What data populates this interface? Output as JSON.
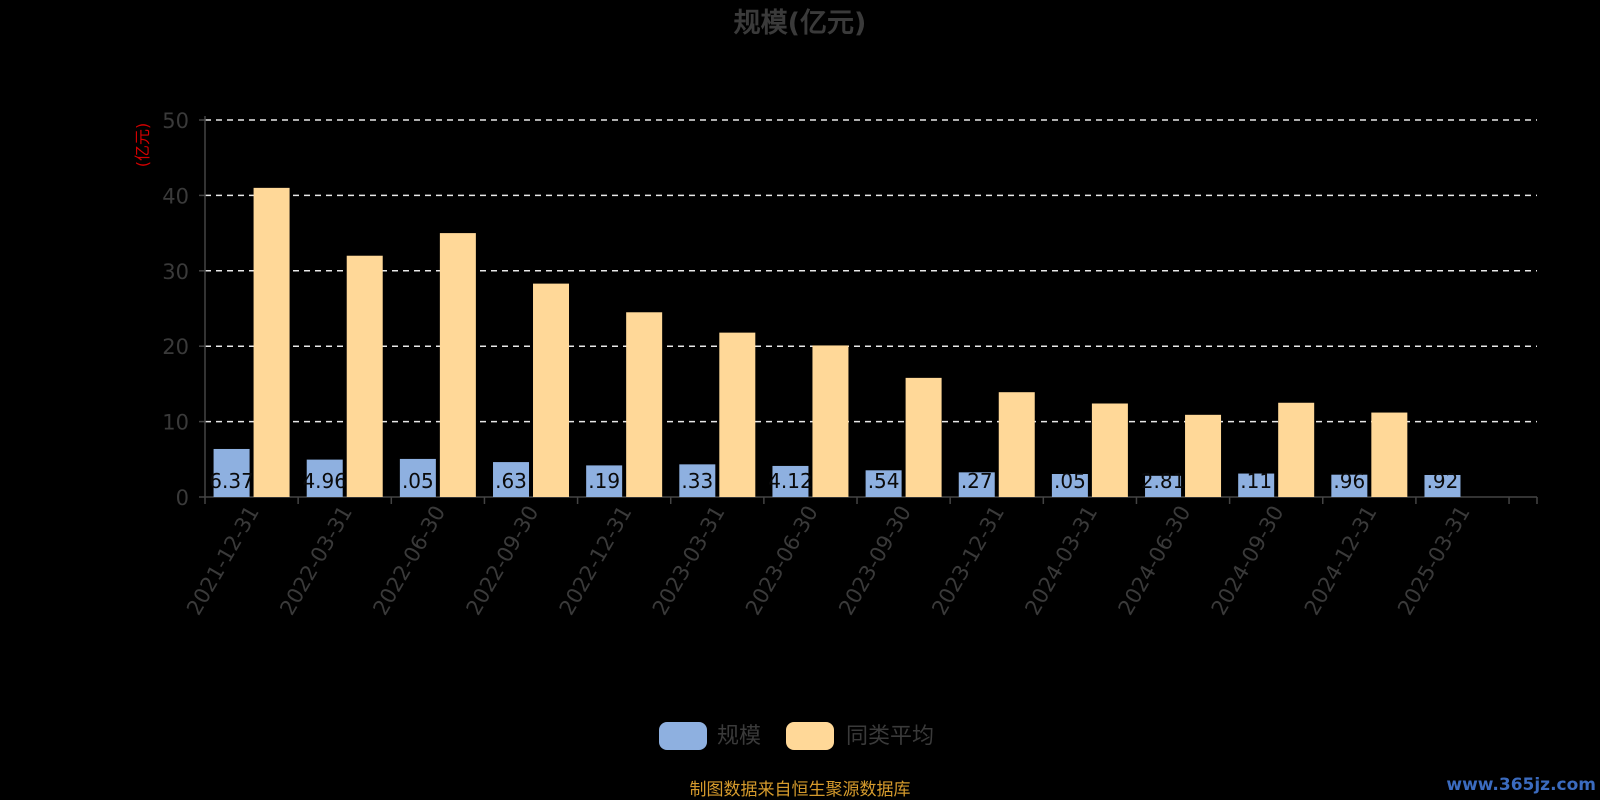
{
  "chart_data": {
    "type": "bar",
    "title": "规模(亿元)",
    "ylabel": "(亿元)",
    "ylim": [
      0,
      50
    ],
    "yticks": [
      0,
      10,
      20,
      30,
      40,
      50
    ],
    "grid": true,
    "legend_position": "bottom",
    "categories": [
      "2021-12-31",
      "2022-03-31",
      "2022-06-30",
      "2022-09-30",
      "2022-12-31",
      "2023-03-31",
      "2023-06-30",
      "2023-09-30",
      "2023-12-31",
      "2024-03-31",
      "2024-06-30",
      "2024-09-30",
      "2024-12-31",
      "2025-03-31"
    ],
    "series": [
      {
        "name": "规模",
        "color": "#8eb0e0",
        "values": [
          6.37,
          4.96,
          5.05,
          4.63,
          4.19,
          4.33,
          4.12,
          3.54,
          3.27,
          3.05,
          2.81,
          3.11,
          2.96,
          2.92
        ],
        "data_labels": [
          "6.37",
          "4.96",
          ".05",
          ".63",
          ".19",
          ".33",
          "4.12",
          ".54",
          ".27",
          ".05",
          "2.81",
          ".11",
          ".96",
          ".92"
        ]
      },
      {
        "name": "同类平均",
        "color": "#ffd898",
        "values": [
          41.0,
          32.0,
          35.0,
          28.3,
          24.5,
          21.8,
          20.1,
          15.8,
          13.9,
          12.4,
          10.9,
          12.5,
          11.2,
          null
        ]
      }
    ]
  },
  "footer": "制图数据来自恒生聚源数据库",
  "watermark": "www.365jz.com",
  "colors": {
    "background": "#000000",
    "axis_text": "#3a3a3a",
    "unit_label": "#d40000",
    "grid": "#e8e8e8",
    "footer": "#d59a2c",
    "watermark": "#3b6bbf"
  }
}
